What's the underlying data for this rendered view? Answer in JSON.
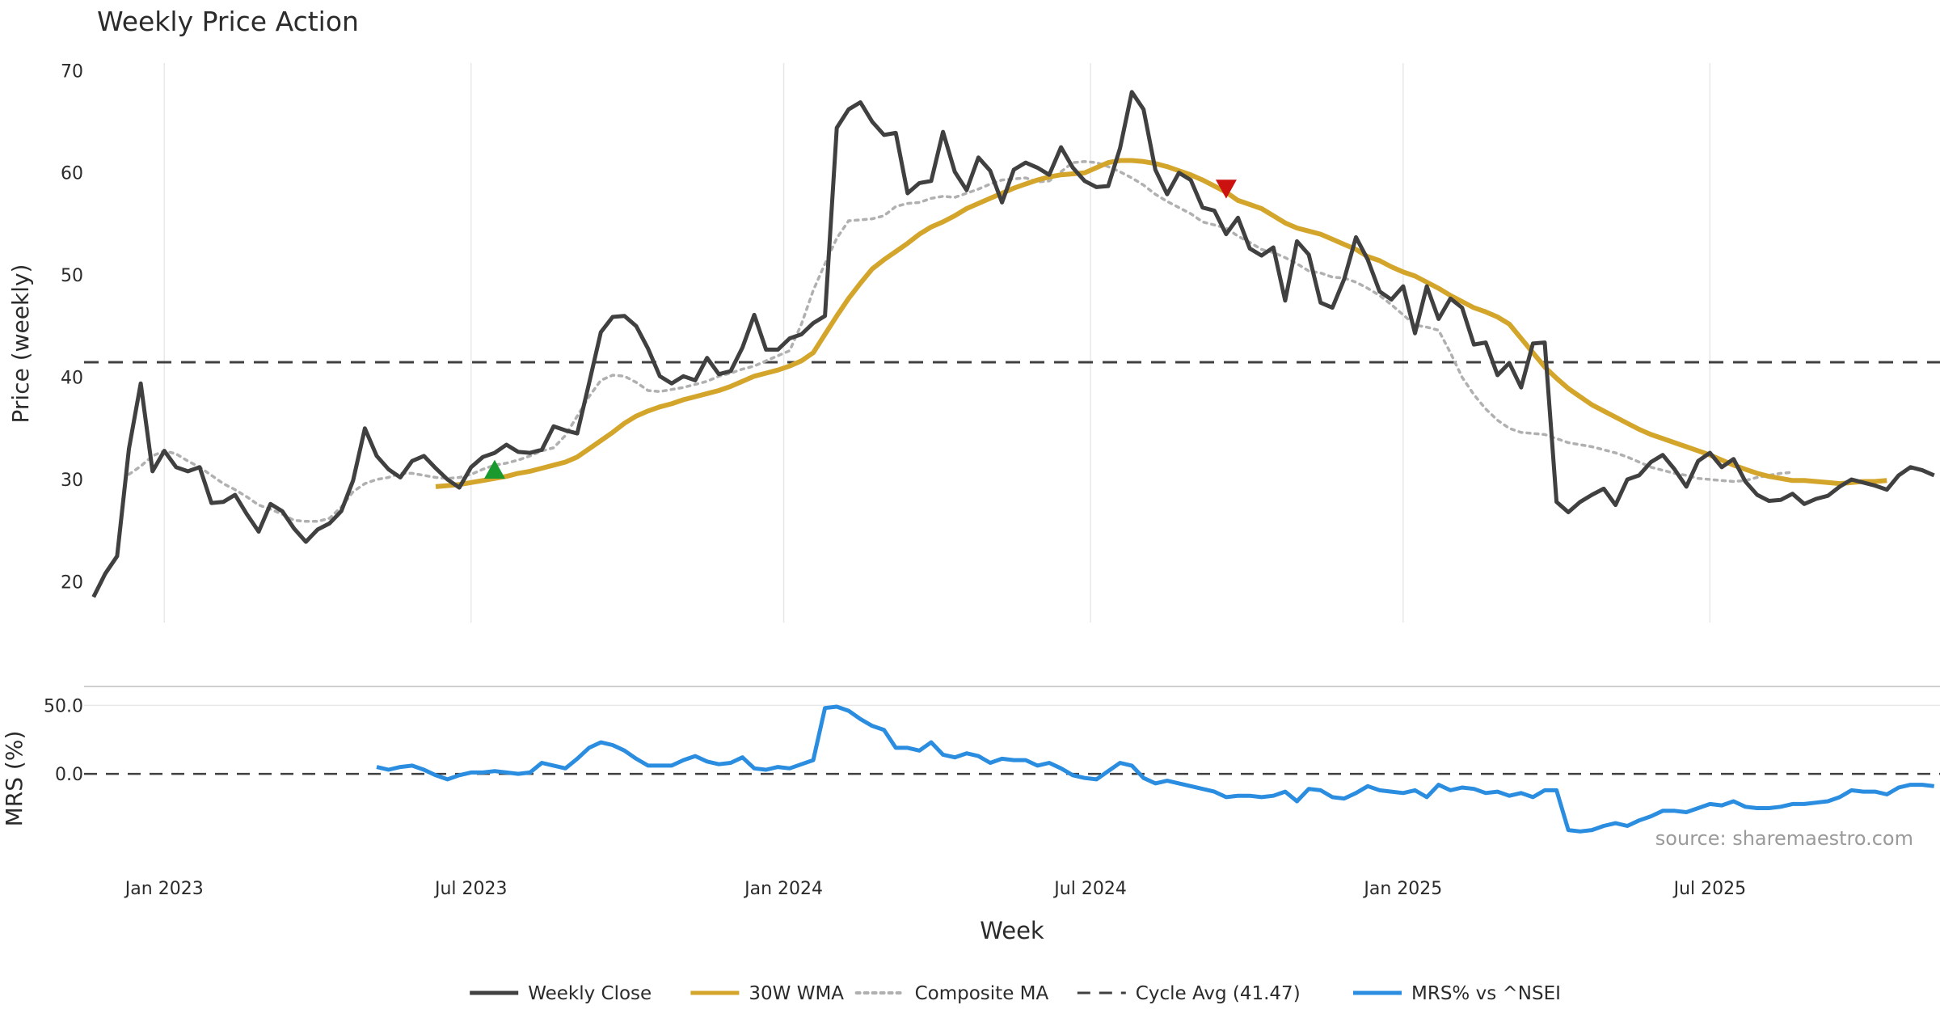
{
  "chart_data": [
    {
      "type": "line",
      "title": "Weekly Price Action",
      "ylabel": "Price (weekly)",
      "xlabel": "Week",
      "ylim": [
        16,
        72
      ],
      "y_ticks": [
        70,
        60,
        50,
        40,
        30,
        20
      ],
      "x_ticks": [
        {
          "label": "Jan 2023",
          "week": 6
        },
        {
          "label": "Jul 2023",
          "week": 32
        },
        {
          "label": "Jan 2024",
          "week": 58.5
        },
        {
          "label": "Jul 2024",
          "week": 84.5
        },
        {
          "label": "Jan 2025",
          "week": 111
        },
        {
          "label": "Jul 2025",
          "week": 137
        }
      ],
      "x_range": [
        -0.8,
        156.5
      ],
      "series": [
        {
          "name": "Weekly Close",
          "color": "#404040",
          "start_week": 0,
          "values": [
            18.5,
            20.8,
            22.5,
            33,
            39.4,
            30.8,
            32.8,
            31.2,
            30.8,
            31.2,
            27.7,
            27.8,
            28.5,
            26.6,
            24.9,
            27.6,
            26.9,
            25.2,
            23.9,
            25.1,
            25.7,
            26.9,
            29.9,
            35.0,
            32.3,
            31.0,
            30.2,
            31.8,
            32.3,
            31.1,
            30.0,
            29.2,
            31.2,
            32.2,
            32.6,
            33.4,
            32.7,
            32.6,
            32.9,
            35.2,
            34.8,
            34.5,
            39.4,
            44.4,
            45.9,
            46.0,
            45.0,
            42.8,
            40.1,
            39.4,
            40.1,
            39.7,
            41.9,
            40.3,
            40.6,
            42.9,
            46.1,
            42.7,
            42.7,
            43.8,
            44.2,
            45.3,
            46.0,
            64.4,
            66.2,
            66.9,
            65.0,
            63.7,
            63.9,
            58.0,
            59.0,
            59.2,
            64.0,
            60.1,
            58.3,
            61.5,
            60.2,
            57.1,
            60.3,
            61.0,
            60.5,
            59.8,
            62.5,
            60.5,
            59.2,
            58.6,
            58.7,
            62.4,
            67.9,
            66.2,
            60.3,
            57.9,
            60.0,
            59.3,
            56.6,
            56.3,
            54.0,
            55.6,
            52.6,
            51.9,
            52.7,
            47.5,
            53.3,
            52.0,
            47.3,
            46.8,
            49.6,
            53.7,
            51.5,
            48.4,
            47.6,
            48.9,
            44.3,
            48.9,
            45.7,
            47.7,
            46.8,
            43.2,
            43.4,
            40.2,
            41.4,
            39.0,
            43.3,
            43.4,
            27.8,
            26.8,
            27.8,
            28.5,
            29.1,
            27.5,
            30.0,
            30.4,
            31.7,
            32.4,
            31.0,
            29.3,
            31.8,
            32.6,
            31.2,
            32.0,
            29.8,
            28.5,
            27.9,
            28.0,
            28.6,
            27.6,
            28.1,
            28.4,
            29.3,
            30.0,
            29.7,
            29.4,
            29.0,
            30.4,
            31.2,
            30.9,
            30.4
          ]
        },
        {
          "name": "30W WMA",
          "color": "#d4a52b",
          "start_week": 29,
          "values": [
            29.3,
            29.4,
            29.5,
            29.7,
            29.9,
            30.1,
            30.3,
            30.6,
            30.8,
            31.1,
            31.4,
            31.7,
            32.2,
            33.0,
            33.8,
            34.6,
            35.5,
            36.2,
            36.7,
            37.1,
            37.4,
            37.8,
            38.1,
            38.4,
            38.7,
            39.1,
            39.6,
            40.1,
            40.4,
            40.7,
            41.1,
            41.6,
            42.4,
            44.2,
            46.0,
            47.7,
            49.2,
            50.6,
            51.5,
            52.3,
            53.1,
            54.0,
            54.7,
            55.2,
            55.8,
            56.5,
            57.0,
            57.5,
            58.0,
            58.5,
            58.9,
            59.3,
            59.6,
            59.8,
            59.9,
            60.0,
            60.5,
            61.0,
            61.2,
            61.2,
            61.1,
            60.9,
            60.6,
            60.2,
            59.8,
            59.3,
            58.7,
            58.1,
            57.3,
            56.9,
            56.5,
            55.8,
            55.1,
            54.6,
            54.3,
            54.0,
            53.5,
            53.0,
            52.5,
            51.8,
            51.4,
            50.8,
            50.3,
            49.9,
            49.3,
            48.7,
            48.0,
            47.4,
            46.8,
            46.4,
            45.9,
            45.2,
            43.8,
            42.4,
            41.0,
            39.9,
            38.9,
            38.1,
            37.3,
            36.7,
            36.1,
            35.5,
            34.9,
            34.4,
            34.0,
            33.6,
            33.2,
            32.8,
            32.4,
            31.9,
            31.4,
            31.0,
            30.6,
            30.3,
            30.1,
            29.9,
            29.9,
            29.8,
            29.7,
            29.6,
            29.7,
            29.8,
            29.8,
            29.9
          ]
        },
        {
          "name": "Composite MA",
          "color": "#b0b0b0",
          "start_week": 3,
          "values": [
            30.5,
            31.3,
            32.3,
            32.8,
            32.5,
            31.8,
            31.2,
            30.4,
            29.6,
            29.0,
            28.3,
            27.5,
            27.1,
            26.6,
            26.0,
            25.9,
            25.9,
            26.2,
            27.3,
            28.8,
            29.6,
            30.0,
            30.2,
            30.6,
            30.6,
            30.4,
            30.2,
            30.1,
            30.2,
            30.5,
            31.0,
            31.4,
            31.6,
            31.9,
            32.3,
            32.8,
            33.1,
            34.3,
            36.2,
            38.1,
            39.7,
            40.2,
            40.1,
            39.5,
            38.7,
            38.6,
            38.8,
            39.0,
            39.3,
            39.6,
            40.1,
            40.4,
            40.8,
            41.1,
            41.6,
            42.1,
            42.6,
            45.2,
            48.5,
            51.1,
            53.6,
            55.3,
            55.4,
            55.5,
            55.8,
            56.7,
            57.0,
            57.1,
            57.5,
            57.7,
            57.6,
            58.0,
            58.4,
            58.9,
            59.3,
            59.4,
            59.5,
            59.1,
            59.2,
            60.1,
            61.0,
            61.1,
            61.0,
            60.6,
            60.1,
            59.5,
            58.8,
            57.9,
            57.2,
            56.6,
            56.0,
            55.2,
            54.9,
            54.6,
            53.8,
            53.2,
            52.5,
            52.2,
            51.7,
            51.1,
            50.4,
            50.2,
            49.8,
            49.7,
            49.3,
            48.7,
            48.0,
            47.1,
            46.1,
            45.1,
            44.9,
            44.6,
            42.4,
            40.0,
            38.3,
            36.9,
            35.8,
            35.0,
            34.6,
            34.5,
            34.4,
            34.0,
            33.6,
            33.4,
            33.2,
            32.9,
            32.6,
            32.2,
            31.7,
            31.2,
            30.9,
            30.6,
            30.4,
            30.1,
            30.0,
            29.9,
            29.8,
            29.9,
            30.2,
            30.4,
            30.6,
            30.7
          ]
        },
        {
          "name": "Cycle Avg (41.47)",
          "color": "#404040",
          "value": 41.47
        }
      ],
      "markers": [
        {
          "name": "buy-signal",
          "shape": "triangle-up",
          "color": "#1a9a2e",
          "week": 34,
          "value": 30.9
        },
        {
          "name": "sell-signal",
          "shape": "triangle-down",
          "color": "#cc1111",
          "week": 96,
          "value": 58.5
        }
      ]
    },
    {
      "type": "line",
      "ylabel": "MRS (%)",
      "ylim": [
        -56,
        62
      ],
      "y_ticks": [
        "50.0",
        "0.0"
      ],
      "y_tick_values": [
        50,
        0
      ],
      "zero_line": 0,
      "series": [
        {
          "name": "MRS% vs ^NSEI",
          "color": "#2a8de0",
          "start_week": 24,
          "values": [
            5,
            3,
            5,
            6,
            3,
            -1,
            -4,
            -1,
            1,
            1,
            2,
            1,
            0,
            1,
            8,
            6,
            4,
            11,
            19,
            23,
            21,
            17,
            11,
            6,
            6,
            6,
            10,
            13,
            9,
            7,
            8,
            12,
            4,
            3,
            5,
            4,
            7,
            10,
            48,
            49,
            46,
            40,
            35,
            32,
            19,
            19,
            17,
            23,
            14,
            12,
            15,
            13,
            8,
            11,
            10,
            10,
            6,
            8,
            4,
            -1,
            -3,
            -4,
            2,
            8,
            6,
            -3,
            -7,
            -5,
            -7,
            -9,
            -11,
            -13,
            -17,
            -16,
            -16,
            -17,
            -16,
            -13,
            -20,
            -11,
            -12,
            -17,
            -18,
            -14,
            -9,
            -12,
            -13,
            -14,
            -12,
            -17,
            -8,
            -12,
            -10,
            -11,
            -14,
            -13,
            -16,
            -14,
            -17,
            -12,
            -12,
            -41,
            -42,
            -41,
            -38,
            -36,
            -38,
            -34,
            -31,
            -27,
            -27,
            -28,
            -25,
            -22,
            -23,
            -20,
            -24,
            -25,
            -25,
            -24,
            -22,
            -22,
            -21,
            -20,
            -17,
            -12,
            -13,
            -13,
            -15,
            -10,
            -8,
            -8,
            -9
          ]
        }
      ],
      "annotation": "source: sharemaestro.com"
    }
  ],
  "legend": {
    "position": "bottom-center",
    "items": [
      {
        "label": "Weekly Close",
        "style": "solid",
        "color": "#404040"
      },
      {
        "label": "30W WMA",
        "style": "solid",
        "color": "#d4a52b"
      },
      {
        "label": "Composite MA",
        "style": "dotted",
        "color": "#b0b0b0"
      },
      {
        "label": "Cycle Avg (41.47)",
        "style": "dashed",
        "color": "#404040"
      },
      {
        "label": "MRS% vs ^NSEI",
        "style": "solid",
        "color": "#2a8de0"
      }
    ]
  }
}
